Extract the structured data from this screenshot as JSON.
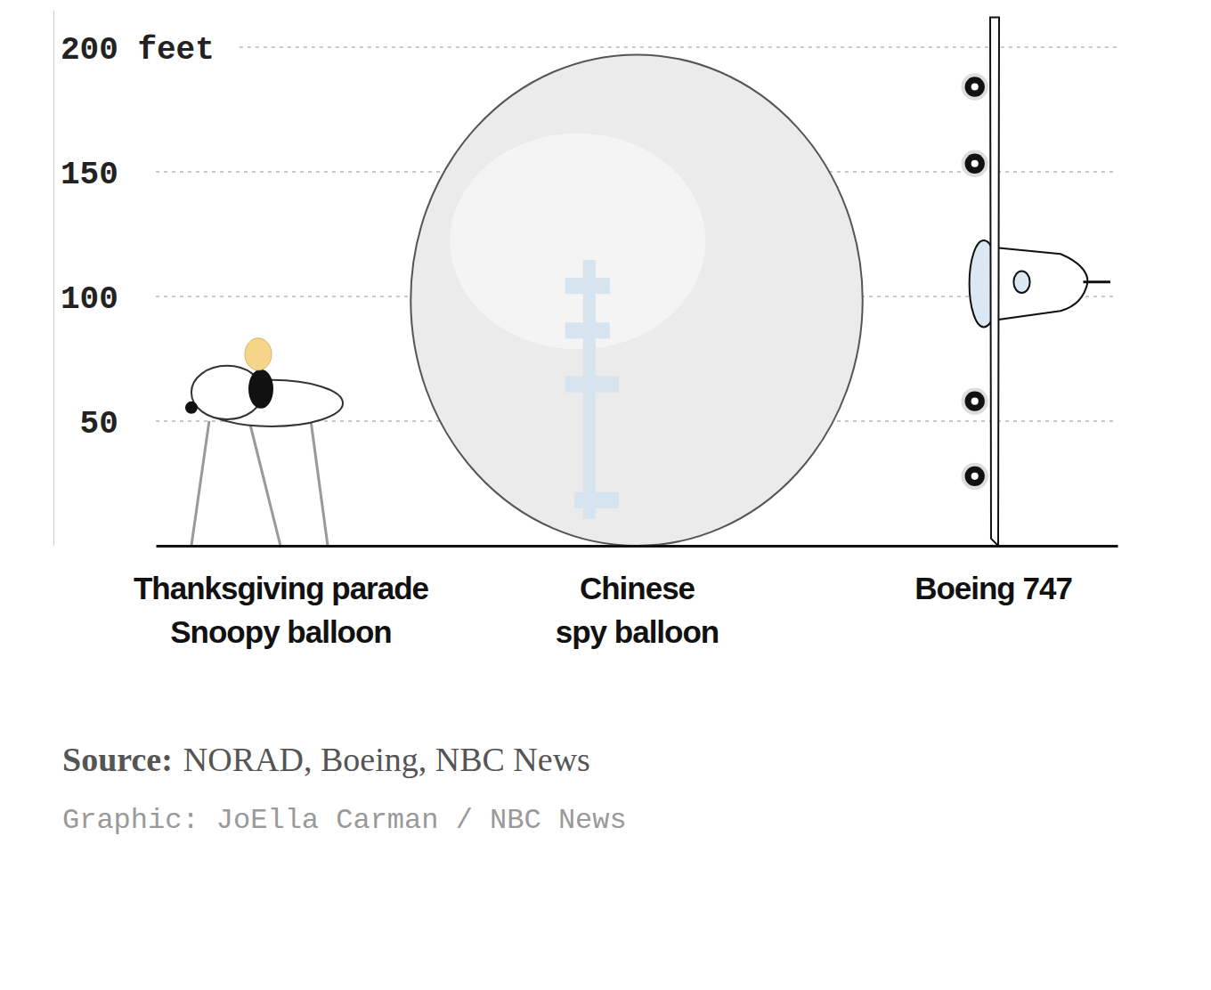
{
  "chart_data": {
    "type": "pictograph",
    "categories": [
      "Thanksgiving parade Snoopy balloon",
      "Chinese spy balloon",
      "Boeing 747"
    ],
    "values": [
      84,
      197,
      212
    ],
    "ylim": [
      0,
      215
    ],
    "yticks": [
      50,
      100,
      150,
      {
        "value": 200,
        "label": "200 feet"
      }
    ],
    "grid": true,
    "source_label": "Source:",
    "source": "NORAD, Boeing, NBC News",
    "credit": "Graphic: JoElla Carman / NBC News"
  }
}
